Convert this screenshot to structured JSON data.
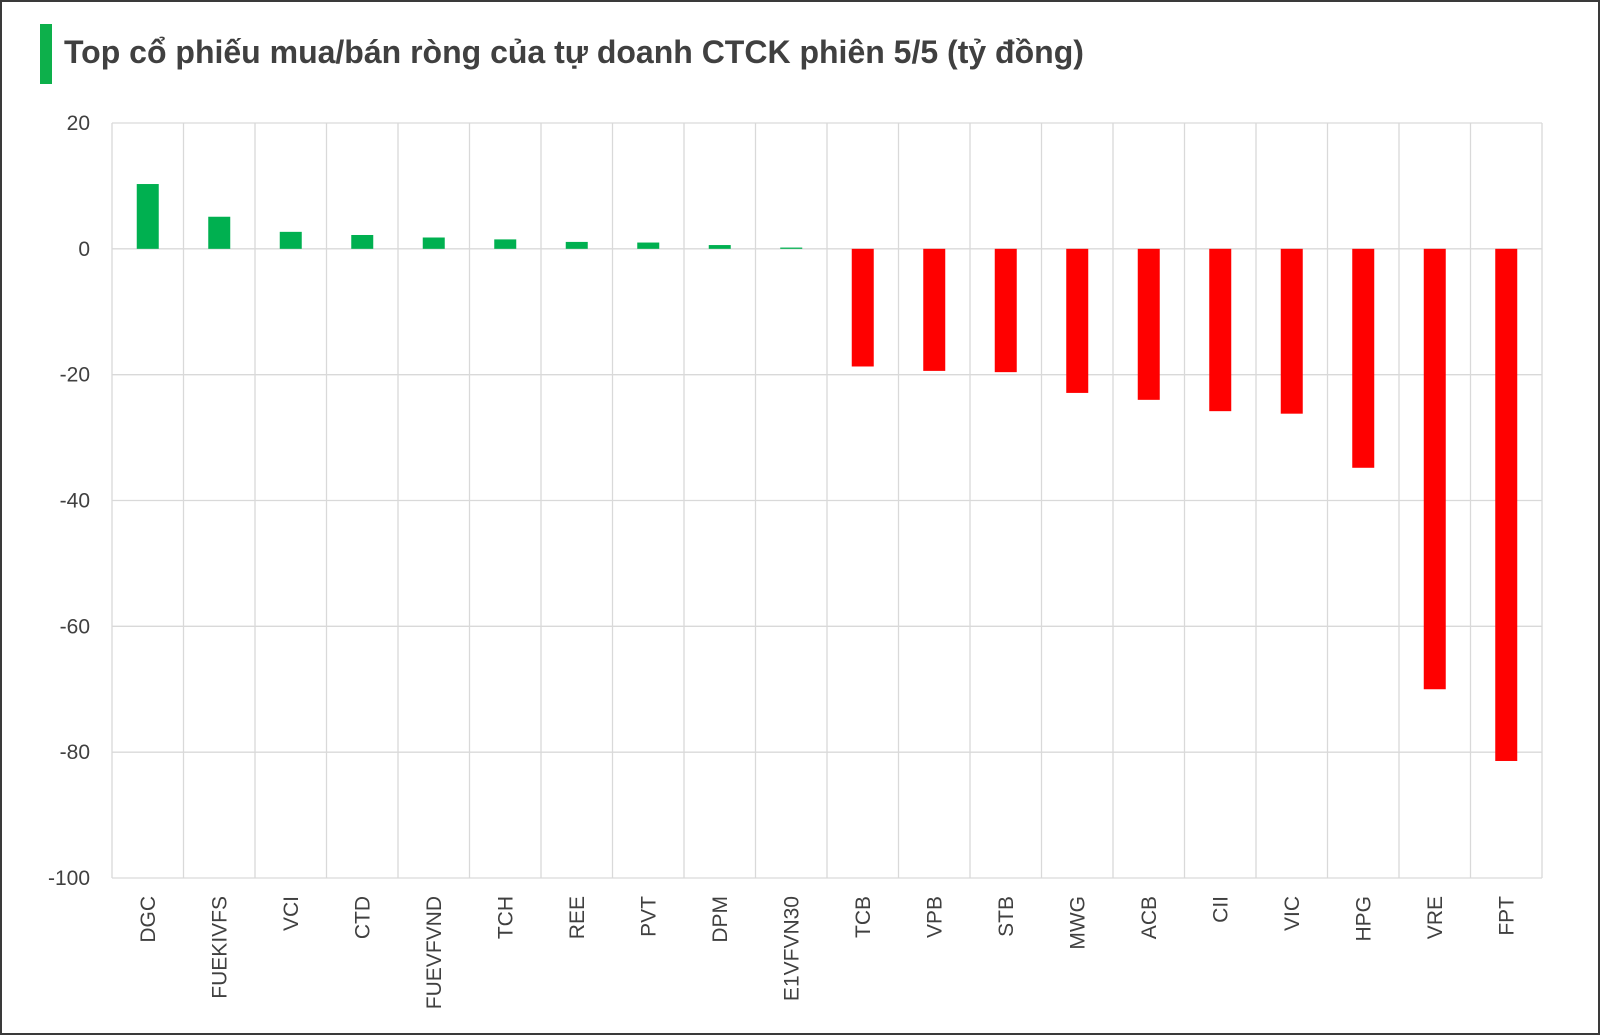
{
  "chart_data": {
    "type": "bar",
    "title": "Top cổ phiếu mua/bán ròng của tự doanh CTCK phiên 5/5 (tỷ đồng)",
    "xlabel": "",
    "ylabel": "",
    "ylim": [
      -100,
      20
    ],
    "yticks": [
      "20",
      "0",
      "-20",
      "-40",
      "-60",
      "-80",
      "-100"
    ],
    "grid": true,
    "legend": "none",
    "categories": [
      "DGC",
      "FUEKIVFS",
      "VCI",
      "CTD",
      "FUEVFVND",
      "TCH",
      "REE",
      "PVT",
      "DPM",
      "E1VFVN30",
      "TCB",
      "VPB",
      "STB",
      "MWG",
      "ACB",
      "CII",
      "VIC",
      "HPG",
      "VRE",
      "FPT"
    ],
    "values": [
      10.3,
      5.1,
      2.7,
      2.2,
      1.8,
      1.5,
      1.1,
      1.0,
      0.6,
      0.2,
      -18.7,
      -19.4,
      -19.6,
      -22.9,
      -24.0,
      -25.8,
      -26.2,
      -34.8,
      -70.0,
      -81.4
    ],
    "colors": {
      "positive": "#00b050",
      "negative": "#ff0000",
      "accent": "#0db04b",
      "grid": "#d9d9d9"
    }
  }
}
